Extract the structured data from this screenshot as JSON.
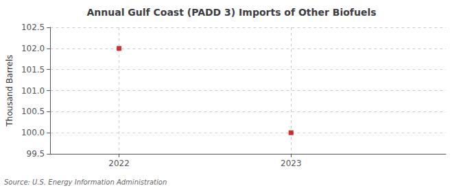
{
  "chart_data": {
    "type": "scatter",
    "title": "Annual Gulf Coast (PADD 3) Imports of Other Biofuels",
    "ylabel": "Thousand Barrels",
    "annotations": [
      "Source: U.S. Energy Information Administration"
    ],
    "x": [
      2022,
      2023
    ],
    "values": [
      102.0,
      100.0
    ],
    "color": "#c00000",
    "marker": "square",
    "xlim": [
      2021.6,
      2023.9
    ],
    "xticks": [
      2022,
      2023
    ],
    "ylim": [
      99.5,
      102.5
    ],
    "yticks": [
      99.5,
      {
        "value": 100,
        "label": "100.0"
      },
      100.5,
      {
        "value": 101,
        "label": "101.0"
      },
      101.5,
      {
        "value": 102,
        "label": "102.0"
      },
      102.5
    ],
    "grid": true
  }
}
